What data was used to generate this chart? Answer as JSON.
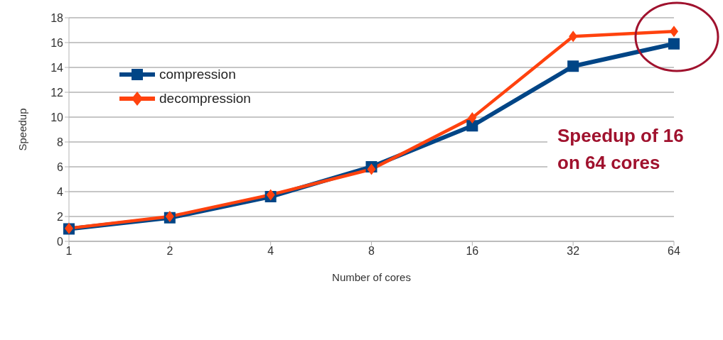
{
  "chart_data": {
    "type": "line",
    "xlabel": "Number of cores",
    "ylabel": "Speedup",
    "categories": [
      "1",
      "2",
      "4",
      "8",
      "16",
      "32",
      "64"
    ],
    "series": [
      {
        "name": "compression",
        "color": "#004586",
        "marker": "square",
        "values": [
          1.0,
          1.9,
          3.6,
          6.0,
          9.3,
          14.1,
          15.9
        ]
      },
      {
        "name": "decompression",
        "color": "#ff420e",
        "marker": "diamond",
        "values": [
          1.05,
          2.0,
          3.75,
          5.8,
          9.95,
          16.5,
          16.9
        ]
      }
    ],
    "ylim": [
      0,
      18
    ],
    "yticks": [
      0,
      2,
      4,
      6,
      8,
      10,
      12,
      14,
      16,
      18
    ],
    "grid": "y",
    "legend": "top left",
    "annotations": [
      "Speedup of 16\non 64 cores"
    ]
  }
}
